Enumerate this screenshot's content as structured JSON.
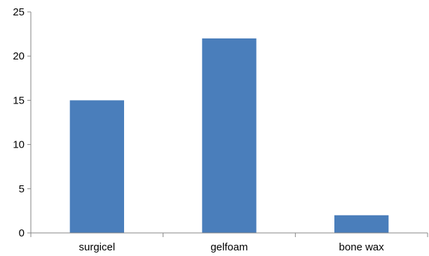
{
  "chart_data": {
    "type": "bar",
    "title": "",
    "xlabel": "",
    "ylabel": "",
    "categories": [
      "surgicel",
      "gelfoam",
      "bone wax"
    ],
    "values": [
      15,
      22,
      2
    ],
    "ylim": [
      0,
      25
    ],
    "yticks": [
      0,
      5,
      10,
      15,
      20,
      25
    ],
    "grid": false,
    "legend": "none",
    "bar_color": "#4a7ebb"
  }
}
